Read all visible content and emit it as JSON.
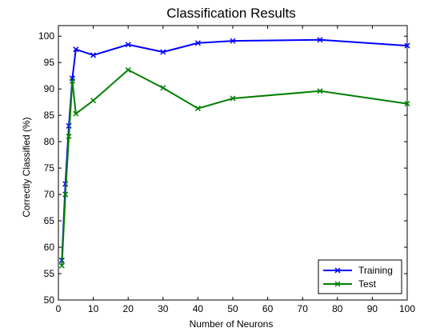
{
  "chart_data": {
    "type": "line",
    "title": "Classification Results",
    "xlabel": "Number of Neurons",
    "ylabel": "Correctly Classified (%)",
    "xlim": [
      0,
      100
    ],
    "ylim": [
      50,
      102
    ],
    "xticks": [
      0,
      10,
      20,
      30,
      40,
      50,
      60,
      70,
      80,
      90,
      100
    ],
    "yticks": [
      50,
      55,
      60,
      65,
      70,
      75,
      80,
      85,
      90,
      95,
      100
    ],
    "grid": false,
    "legend_position": "bottom-right",
    "series": [
      {
        "name": "Training",
        "color": "#0000ff",
        "marker": "x",
        "x": [
          1,
          2,
          3,
          4,
          5,
          10,
          20,
          30,
          40,
          50,
          75,
          100
        ],
        "y": [
          57.5,
          72,
          83,
          92,
          97.5,
          96.4,
          98.4,
          97,
          98.7,
          99.1,
          99.3,
          98.2
        ]
      },
      {
        "name": "Test",
        "color": "#008000",
        "marker": "x",
        "x": [
          1,
          2,
          3,
          4,
          5,
          10,
          20,
          30,
          40,
          50,
          75,
          100
        ],
        "y": [
          56.5,
          70,
          81,
          91.5,
          85.3,
          87.8,
          93.6,
          90.2,
          86.3,
          88.2,
          89.6,
          87.2
        ]
      }
    ]
  }
}
